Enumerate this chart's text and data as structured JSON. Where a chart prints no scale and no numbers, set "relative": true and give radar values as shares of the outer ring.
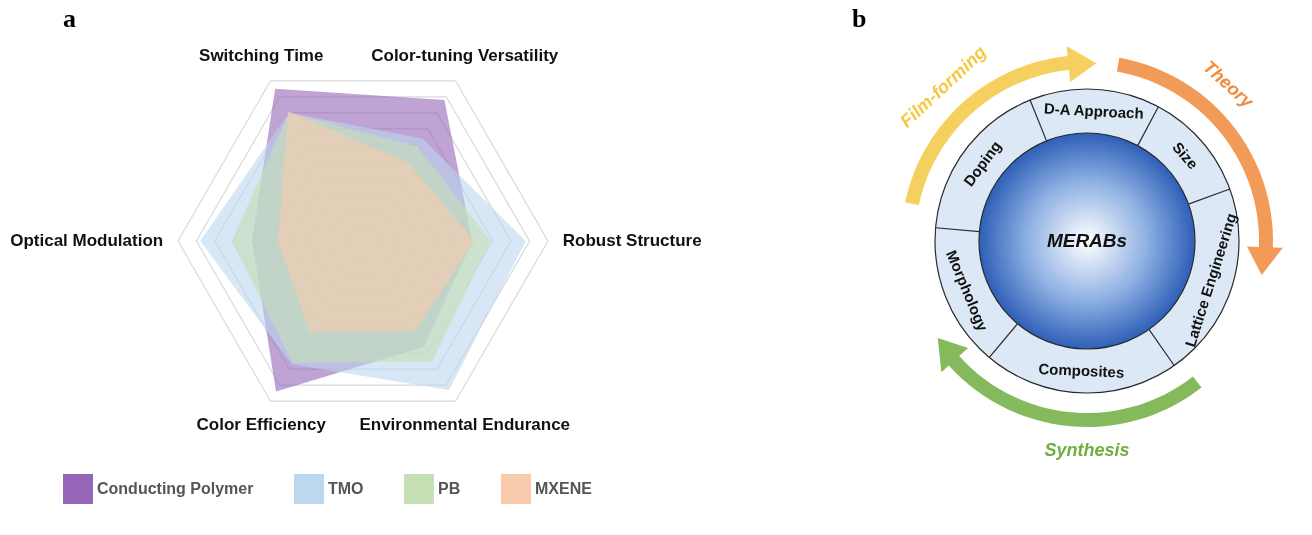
{
  "chart_data": [
    {
      "type": "radar",
      "title": "a",
      "relative": true,
      "grid": true,
      "legend": "bottom",
      "categories": [
        "Switching Time",
        "Color-tuning Versatility",
        "Robust Structure",
        "Environmental Endurance",
        "Color Efficiency",
        "Optical Modulation"
      ],
      "series": [
        {
          "name": "Conducting Polymer",
          "color": "#9565b8",
          "values": [
            0.95,
            0.88,
            0.59,
            0.66,
            0.94,
            0.6
          ]
        },
        {
          "name": "TMO",
          "color": "#bdd7ee",
          "values": [
            0.8,
            0.64,
            0.88,
            0.93,
            0.77,
            0.88
          ]
        },
        {
          "name": "PB",
          "color": "#c5e0b4",
          "values": [
            0.8,
            0.59,
            0.69,
            0.75,
            0.76,
            0.71
          ]
        },
        {
          "name": "MXENE",
          "color": "#f8cbad",
          "values": [
            0.81,
            0.49,
            0.6,
            0.56,
            0.57,
            0.46
          ]
        }
      ]
    },
    {
      "type": "other",
      "title": "b",
      "categories": [
        "D-A Approach",
        "Size",
        "Lattice Engineering",
        "Composites",
        "Morphology",
        "Doping"
      ],
      "annotations": [
        "MERABs",
        "Theory",
        "Synthesis",
        "Film-forming"
      ]
    }
  ]
}
